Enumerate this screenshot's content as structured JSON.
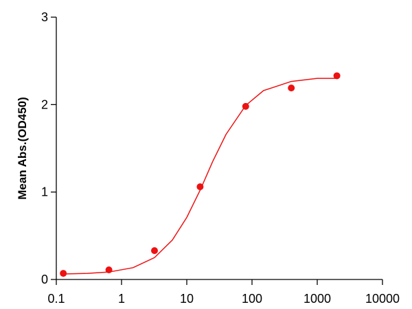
{
  "chart_data": {
    "type": "scatter",
    "y_label": "Mean Abs.(OD450)",
    "x": [
      0.128,
      0.64,
      3.2,
      16,
      80,
      400,
      2000
    ],
    "values": [
      0.07,
      0.11,
      0.33,
      1.06,
      1.98,
      2.19,
      2.33
    ],
    "curve": {
      "x": [
        0.128,
        0.3,
        0.64,
        1.5,
        3.2,
        6,
        10,
        16,
        25,
        40,
        80,
        150,
        400,
        1000,
        2000
      ],
      "values": [
        0.063,
        0.07,
        0.085,
        0.135,
        0.25,
        0.45,
        0.71,
        1.02,
        1.35,
        1.66,
        1.99,
        2.16,
        2.265,
        2.3,
        2.3
      ]
    },
    "color": "#ee1111",
    "xscale": "log",
    "xlim": [
      0.1,
      10000
    ],
    "xticks": [
      0.1,
      1,
      10,
      100,
      1000,
      10000
    ],
    "ylim": [
      0,
      3
    ],
    "yticks": [
      0,
      1,
      2,
      3
    ],
    "grid": false
  }
}
